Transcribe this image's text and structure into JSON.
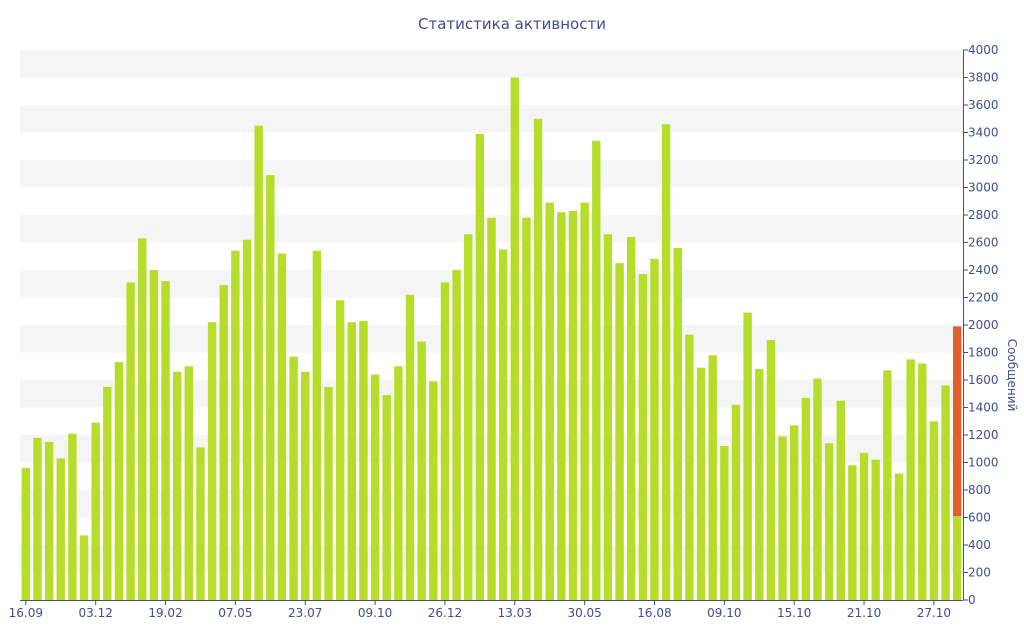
{
  "chart_data": {
    "type": "bar",
    "title": "Статистика активности",
    "ylabel": "Сообщений",
    "xlabel": "",
    "ylim": [
      0,
      4000
    ],
    "y_ticks": [
      0,
      200,
      400,
      600,
      800,
      1000,
      1200,
      1400,
      1600,
      1800,
      2000,
      2200,
      2400,
      2600,
      2800,
      3000,
      3200,
      3400,
      3600,
      3800,
      4000
    ],
    "x_tick_labels": [
      {
        "index": 0,
        "label": "16.09"
      },
      {
        "index": 6,
        "label": "03.12"
      },
      {
        "index": 12,
        "label": "19.02"
      },
      {
        "index": 18,
        "label": "07.05"
      },
      {
        "index": 24,
        "label": "23.07"
      },
      {
        "index": 30,
        "label": "09.10"
      },
      {
        "index": 36,
        "label": "26.12"
      },
      {
        "index": 42,
        "label": "13.03"
      },
      {
        "index": 48,
        "label": "30.05"
      },
      {
        "index": 54,
        "label": "16.08"
      },
      {
        "index": 60,
        "label": "09.10"
      },
      {
        "index": 66,
        "label": "15.10"
      },
      {
        "index": 72,
        "label": "21.10"
      },
      {
        "index": 78,
        "label": "27.10"
      }
    ],
    "y_axis_position": "right",
    "grid": "horizontal bands",
    "colors": {
      "bar": "#b5dd2a",
      "highlight": "#e05f2c",
      "axis": "#3e4f8f",
      "band": "#f5f5f5"
    },
    "series": [
      {
        "values": [
          960,
          1180,
          1150,
          1030,
          1210,
          470,
          1290,
          1550,
          1730,
          2310,
          2630,
          2400,
          2320,
          1660,
          1700,
          1110,
          2020,
          2290,
          2540,
          2620,
          3450,
          3090,
          2520,
          1770,
          1660,
          2540,
          1550,
          2180,
          2020,
          2030,
          1640,
          1490,
          1700,
          2220,
          1880,
          1590,
          2310,
          2400,
          2660,
          3390,
          2780,
          2550,
          3800,
          2780,
          3500,
          2890,
          2820,
          2830,
          2890,
          3340,
          2660,
          2450,
          2640,
          2370,
          2480,
          3460,
          2560,
          1930,
          1690,
          1780,
          1120,
          1420,
          2090,
          1680,
          1890,
          1190,
          1270,
          1470,
          1610,
          1140,
          1450,
          980,
          1070,
          1020,
          1670,
          920,
          1750,
          1720,
          1300,
          1560,
          1990
        ]
      }
    ],
    "highlight": {
      "index": 80,
      "value": 1990,
      "base_value": 610
    }
  }
}
